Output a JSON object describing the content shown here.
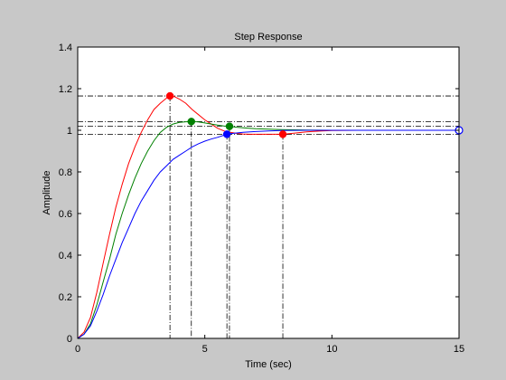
{
  "chart_data": {
    "type": "line",
    "title": "Step Response",
    "xlabel": "Time (sec)",
    "ylabel": "Amplitude",
    "xlim": [
      0,
      15
    ],
    "ylim": [
      0,
      1.4
    ],
    "xticks": [
      0,
      5,
      10,
      15
    ],
    "xtick_labels": [
      "0",
      "5",
      "10",
      "15"
    ],
    "yticks": [
      0,
      0.2,
      0.4,
      0.6,
      0.8,
      1,
      1.2,
      1.4
    ],
    "ytick_labels": [
      "0",
      "0.2",
      "0.4",
      "0.6",
      "0.8",
      "1",
      "1.2",
      "1.4"
    ],
    "grid": false,
    "background": "#c8c8c8",
    "axes_color": "#ffffff",
    "series": [
      {
        "color": "#ff0000",
        "x": [
          0,
          0.25,
          0.5,
          0.75,
          1,
          1.25,
          1.5,
          1.75,
          2,
          2.25,
          2.5,
          2.75,
          3,
          3.25,
          3.5,
          3.63,
          3.8,
          4,
          4.25,
          4.5,
          4.75,
          5,
          5.25,
          5.5,
          5.75,
          6,
          6.25,
          6.5,
          6.75,
          7,
          7.25,
          7.5,
          7.75,
          8.0,
          8.25,
          8.5,
          9,
          9.5,
          10,
          11,
          12,
          13,
          14,
          15
        ],
        "y": [
          0,
          0.03,
          0.1,
          0.22,
          0.36,
          0.5,
          0.63,
          0.74,
          0.84,
          0.92,
          0.99,
          1.05,
          1.1,
          1.13,
          1.155,
          1.165,
          1.162,
          1.15,
          1.13,
          1.1,
          1.075,
          1.05,
          1.03,
          1.01,
          0.997,
          0.99,
          0.985,
          0.982,
          0.981,
          0.981,
          0.981,
          0.981,
          0.981,
          0.981,
          0.983,
          0.986,
          0.992,
          0.996,
          0.999,
          1.0,
          1.0,
          1.0,
          1.0,
          1.0
        ]
      },
      {
        "color": "#008000",
        "x": [
          0,
          0.25,
          0.5,
          0.75,
          1,
          1.25,
          1.5,
          1.75,
          2,
          2.25,
          2.5,
          2.75,
          3,
          3.25,
          3.5,
          3.75,
          4,
          4.25,
          4.47,
          4.75,
          5,
          5.25,
          5.5,
          5.75,
          5.97,
          6.25,
          6.5,
          7,
          7.5,
          8,
          9,
          10,
          11,
          12,
          13,
          14,
          15
        ],
        "y": [
          0,
          0.02,
          0.07,
          0.16,
          0.27,
          0.38,
          0.5,
          0.6,
          0.69,
          0.77,
          0.84,
          0.9,
          0.95,
          0.99,
          1.015,
          1.03,
          1.038,
          1.041,
          1.042,
          1.04,
          1.035,
          1.03,
          1.025,
          1.021,
          1.019,
          1.015,
          1.012,
          1.008,
          1.005,
          1.003,
          1.001,
          1.0,
          1.0,
          1.0,
          1.0,
          1.0,
          1.0
        ]
      },
      {
        "color": "#0000ff",
        "x": [
          0,
          0.25,
          0.5,
          0.75,
          1,
          1.25,
          1.5,
          1.75,
          2,
          2.25,
          2.5,
          2.75,
          3,
          3.25,
          3.5,
          3.75,
          4,
          4.25,
          4.5,
          4.75,
          5,
          5.25,
          5.5,
          5.87,
          6,
          6.5,
          7,
          7.5,
          8,
          9,
          10,
          11,
          12,
          13,
          14,
          15
        ],
        "y": [
          0,
          0.02,
          0.06,
          0.13,
          0.21,
          0.3,
          0.38,
          0.46,
          0.53,
          0.6,
          0.66,
          0.71,
          0.76,
          0.8,
          0.83,
          0.86,
          0.88,
          0.9,
          0.92,
          0.935,
          0.948,
          0.958,
          0.966,
          0.981,
          0.984,
          0.99,
          0.994,
          0.997,
          0.999,
          1.0,
          1.0,
          1.0,
          1.0,
          1.0,
          1.0,
          1.0
        ]
      }
    ],
    "markers": [
      {
        "color": "#ff0000",
        "x": 3.63,
        "y": 1.165,
        "hollow": false
      },
      {
        "color": "#008000",
        "x": 4.47,
        "y": 1.042,
        "hollow": false
      },
      {
        "color": "#008000",
        "x": 5.97,
        "y": 1.019,
        "hollow": false
      },
      {
        "color": "#0000ff",
        "x": 5.87,
        "y": 0.981,
        "hollow": false
      },
      {
        "color": "#ff0000",
        "x": 8.07,
        "y": 0.981,
        "hollow": false
      },
      {
        "color": "#0000ff",
        "x": 15,
        "y": 1.0,
        "hollow": true
      }
    ],
    "ref_hlines": [
      1.165,
      1.042,
      1.02,
      0.98
    ],
    "ref_vlines": [
      {
        "x": 3.63,
        "y": 1.165
      },
      {
        "x": 4.47,
        "y": 1.042
      },
      {
        "x": 5.87,
        "y": 0.981
      },
      {
        "x": 5.97,
        "y": 1.019
      },
      {
        "x": 8.07,
        "y": 0.981
      }
    ]
  }
}
